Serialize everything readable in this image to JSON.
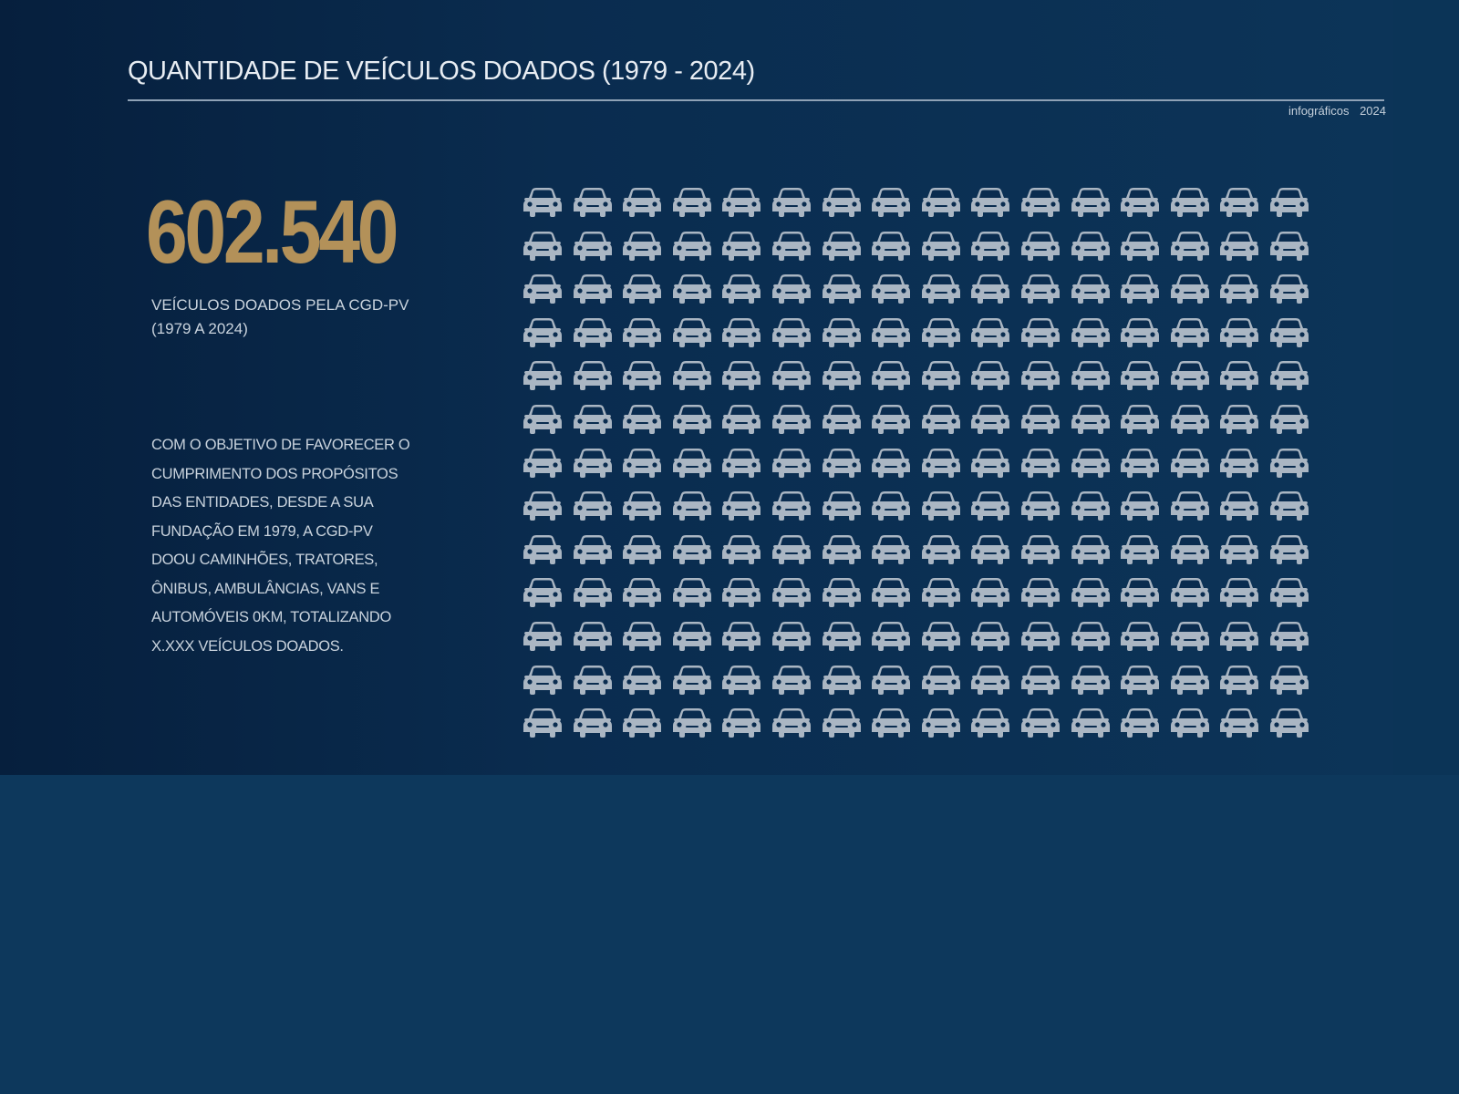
{
  "header": {
    "title": "QUANTIDADE DE VEÍCULOS DOADOS (1979 - 2024)",
    "meta_label": "infográficos",
    "meta_year": "2024"
  },
  "stat": {
    "value": "602.540",
    "label_line1": "VEÍCULOS DOADOS PELA CGD-PV",
    "label_line2": "(1979 A 2024)"
  },
  "description": {
    "lines": [
      "COM O OBJETIVO DE FAVORECER O",
      "CUMPRIMENTO DOS PROPÓSITOS",
      "DAS ENTIDADES, DESDE A SUA",
      "FUNDAÇÃO EM 1979, A CGD-PV",
      "DOOU CAMINHÕES, TRATORES,",
      "ÔNIBUS, AMBULÂNCIAS, VANS E",
      "AUTOMÓVEIS 0KM, TOTALIZANDO",
      "X.XXX VEÍCULOS DOADOS."
    ]
  },
  "pictogram": {
    "icon": "car-icon",
    "rows": 13,
    "columns": 16,
    "color": "#aab6c3"
  },
  "colors": {
    "background": "#0d385c",
    "accent": "#b39159",
    "text": "#c9d3dd"
  }
}
